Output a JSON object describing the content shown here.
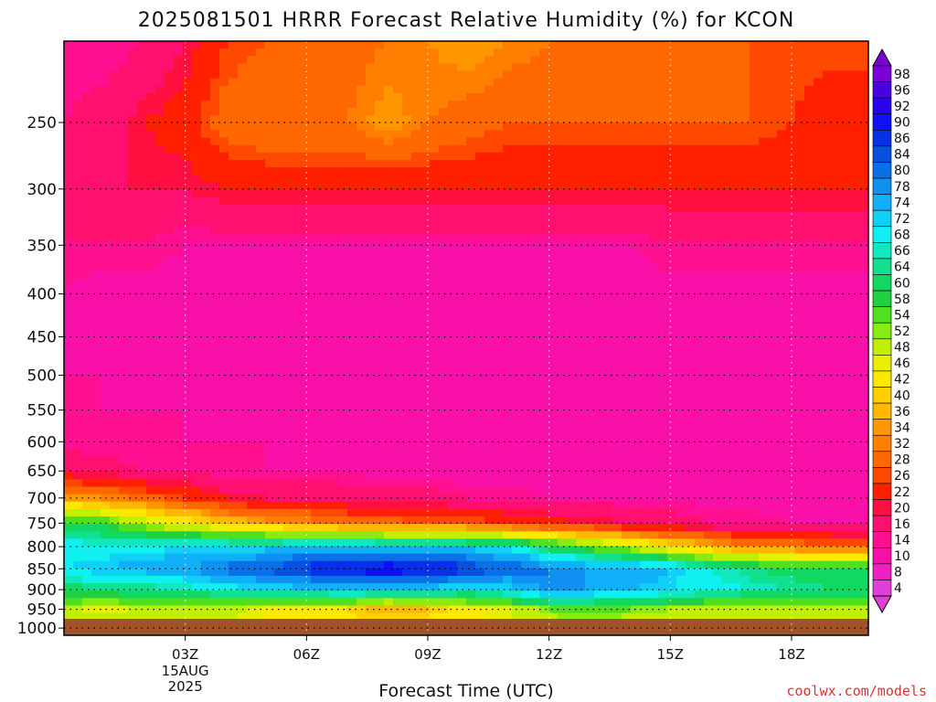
{
  "chart_data": {
    "type": "heatmap",
    "title": "2025081501 HRRR Forecast Relative Humidity (%) for KCON",
    "xlabel": "Forecast Time (UTC)",
    "credit": "coolwx.com/models",
    "y_ticks": [
      250,
      300,
      350,
      400,
      450,
      500,
      550,
      600,
      650,
      700,
      750,
      800,
      850,
      900,
      950,
      1000
    ],
    "x_ticks": [
      {
        "hour": 3,
        "label": "03Z",
        "sub": [
          "15AUG",
          "2025"
        ]
      },
      {
        "hour": 6,
        "label": "06Z"
      },
      {
        "hour": 9,
        "label": "09Z"
      },
      {
        "hour": 12,
        "label": "12Z"
      },
      {
        "hour": 15,
        "label": "15Z"
      },
      {
        "hour": 18,
        "label": "18Z"
      }
    ],
    "xlim": [
      0,
      19.9
    ],
    "ylim": [
      1020,
      200
    ],
    "log_pressure_axis": true,
    "grid": true,
    "colorbar": {
      "labels": [
        98,
        96,
        92,
        90,
        86,
        84,
        80,
        78,
        74,
        72,
        68,
        66,
        64,
        60,
        58,
        54,
        52,
        48,
        46,
        42,
        40,
        36,
        34,
        32,
        28,
        26,
        22,
        20,
        16,
        14,
        10,
        8,
        4
      ],
      "colors": [
        "#7a00d8",
        "#4a00e0",
        "#2a00f0",
        "#1010f8",
        "#0830e8",
        "#0a50e0",
        "#0a70e8",
        "#1090f0",
        "#10b0f8",
        "#10d0f8",
        "#10f0f0",
        "#10e8c0",
        "#10e090",
        "#10d860",
        "#20d040",
        "#50e020",
        "#88ec10",
        "#c0f000",
        "#e8f000",
        "#ffe800",
        "#ffd000",
        "#ffb800",
        "#ff9800",
        "#ff8000",
        "#ff6800",
        "#ff4800",
        "#ff2000",
        "#ff1040",
        "#ff1070",
        "#ff1090",
        "#f810a8",
        "#f020c0",
        "#e040d8"
      ]
    },
    "rh_profiles": [
      {
        "hour": 0,
        "p": [
          200,
          250,
          300,
          350,
          400,
          450,
          500,
          550,
          600,
          650,
          700,
          750,
          800,
          850,
          900,
          950,
          1000
        ],
        "rh": [
          14,
          16,
          20,
          16,
          14,
          12,
          14,
          16,
          14,
          20,
          36,
          60,
          70,
          72,
          62,
          50,
          54
        ]
      },
      {
        "hour": 1,
        "p": [
          200,
          250,
          300,
          350,
          400,
          450,
          500,
          550,
          600,
          650,
          700,
          750,
          800,
          850,
          900,
          950,
          1000
        ],
        "rh": [
          14,
          18,
          20,
          16,
          12,
          12,
          14,
          14,
          14,
          18,
          34,
          58,
          70,
          74,
          64,
          46,
          52
        ]
      },
      {
        "hour": 2,
        "p": [
          200,
          250,
          300,
          350,
          400,
          450,
          500,
          550,
          600,
          650,
          700,
          750,
          800,
          850,
          900,
          950,
          1000
        ],
        "rh": [
          16,
          22,
          20,
          16,
          12,
          12,
          12,
          14,
          14,
          16,
          30,
          50,
          70,
          76,
          64,
          50,
          50
        ]
      },
      {
        "hour": 3,
        "p": [
          200,
          250,
          300,
          350,
          400,
          450,
          500,
          550,
          600,
          650,
          700,
          750,
          800,
          850,
          900,
          950,
          1000
        ],
        "rh": [
          20,
          24,
          20,
          14,
          12,
          10,
          12,
          14,
          14,
          16,
          26,
          46,
          72,
          78,
          66,
          48,
          48
        ]
      },
      {
        "hour": 4,
        "p": [
          200,
          250,
          300,
          350,
          400,
          450,
          500,
          550,
          600,
          650,
          700,
          750,
          800,
          850,
          900,
          950,
          1000
        ],
        "rh": [
          26,
          30,
          22,
          14,
          12,
          10,
          12,
          12,
          14,
          14,
          22,
          40,
          72,
          82,
          70,
          50,
          48
        ]
      },
      {
        "hour": 5,
        "p": [
          200,
          250,
          300,
          350,
          400,
          450,
          500,
          550,
          600,
          650,
          700,
          750,
          800,
          850,
          900,
          950,
          1000
        ],
        "rh": [
          28,
          32,
          22,
          14,
          12,
          10,
          12,
          12,
          14,
          14,
          20,
          36,
          72,
          86,
          72,
          46,
          46
        ]
      },
      {
        "hour": 6,
        "p": [
          200,
          250,
          300,
          350,
          400,
          450,
          500,
          550,
          600,
          650,
          700,
          750,
          800,
          850,
          900,
          950,
          1000
        ],
        "rh": [
          30,
          32,
          22,
          14,
          12,
          10,
          12,
          12,
          12,
          14,
          20,
          34,
          74,
          88,
          72,
          44,
          46
        ]
      },
      {
        "hour": 7,
        "p": [
          200,
          250,
          300,
          350,
          400,
          450,
          500,
          550,
          600,
          650,
          700,
          750,
          800,
          850,
          900,
          950,
          1000
        ],
        "rh": [
          30,
          32,
          22,
          14,
          12,
          10,
          12,
          12,
          12,
          14,
          18,
          32,
          74,
          92,
          74,
          42,
          44
        ]
      },
      {
        "hour": 8,
        "p": [
          200,
          250,
          300,
          350,
          400,
          450,
          500,
          550,
          600,
          650,
          700,
          750,
          800,
          850,
          900,
          950,
          1000
        ],
        "rh": [
          32,
          36,
          22,
          14,
          12,
          10,
          12,
          12,
          12,
          12,
          18,
          30,
          74,
          94,
          74,
          38,
          44
        ]
      },
      {
        "hour": 9,
        "p": [
          200,
          250,
          300,
          350,
          400,
          450,
          500,
          550,
          600,
          650,
          700,
          750,
          800,
          850,
          900,
          950,
          1000
        ],
        "rh": [
          34,
          32,
          22,
          14,
          14,
          10,
          12,
          12,
          12,
          12,
          18,
          28,
          74,
          92,
          72,
          40,
          44
        ]
      },
      {
        "hour": 10,
        "p": [
          200,
          250,
          300,
          350,
          400,
          450,
          500,
          550,
          600,
          650,
          700,
          750,
          800,
          850,
          900,
          950,
          1000
        ],
        "rh": [
          36,
          30,
          22,
          14,
          12,
          10,
          12,
          12,
          12,
          12,
          16,
          28,
          72,
          88,
          70,
          44,
          46
        ]
      },
      {
        "hour": 11,
        "p": [
          200,
          250,
          300,
          350,
          400,
          450,
          500,
          550,
          600,
          650,
          700,
          750,
          800,
          850,
          900,
          950,
          1000
        ],
        "rh": [
          34,
          28,
          22,
          14,
          12,
          10,
          12,
          12,
          12,
          12,
          16,
          26,
          70,
          84,
          72,
          48,
          46
        ]
      },
      {
        "hour": 12,
        "p": [
          200,
          250,
          300,
          350,
          400,
          450,
          500,
          550,
          600,
          650,
          700,
          750,
          800,
          850,
          900,
          950,
          1000
        ],
        "rh": [
          32,
          28,
          22,
          14,
          12,
          10,
          12,
          12,
          12,
          12,
          14,
          24,
          62,
          80,
          80,
          54,
          48
        ]
      },
      {
        "hour": 13,
        "p": [
          200,
          250,
          300,
          350,
          400,
          450,
          500,
          550,
          600,
          650,
          700,
          750,
          800,
          850,
          900,
          950,
          1000
        ],
        "rh": [
          30,
          28,
          22,
          14,
          12,
          10,
          12,
          12,
          12,
          12,
          14,
          22,
          56,
          78,
          78,
          56,
          48
        ]
      },
      {
        "hour": 14,
        "p": [
          200,
          250,
          300,
          350,
          400,
          450,
          500,
          550,
          600,
          650,
          700,
          750,
          800,
          850,
          900,
          950,
          1000
        ],
        "rh": [
          30,
          28,
          22,
          14,
          12,
          10,
          12,
          12,
          12,
          12,
          14,
          20,
          50,
          78,
          74,
          54,
          48
        ]
      },
      {
        "hour": 15,
        "p": [
          200,
          250,
          300,
          350,
          400,
          450,
          500,
          550,
          600,
          650,
          700,
          750,
          800,
          850,
          900,
          950,
          1000
        ],
        "rh": [
          30,
          28,
          22,
          16,
          12,
          10,
          12,
          12,
          12,
          12,
          14,
          18,
          44,
          74,
          72,
          52,
          46
        ]
      },
      {
        "hour": 16,
        "p": [
          200,
          250,
          300,
          350,
          400,
          450,
          500,
          550,
          600,
          650,
          700,
          750,
          800,
          850,
          900,
          950,
          1000
        ],
        "rh": [
          28,
          28,
          22,
          16,
          12,
          10,
          12,
          12,
          12,
          12,
          12,
          16,
          38,
          68,
          70,
          50,
          46
        ]
      },
      {
        "hour": 17,
        "p": [
          200,
          250,
          300,
          350,
          400,
          450,
          500,
          550,
          600,
          650,
          700,
          750,
          800,
          850,
          900,
          950,
          1000
        ],
        "rh": [
          28,
          28,
          22,
          16,
          12,
          10,
          12,
          12,
          12,
          12,
          12,
          16,
          34,
          64,
          68,
          50,
          46
        ]
      },
      {
        "hour": 18,
        "p": [
          200,
          250,
          300,
          350,
          400,
          450,
          500,
          550,
          600,
          650,
          700,
          750,
          800,
          850,
          900,
          950,
          1000
        ],
        "rh": [
          28,
          26,
          22,
          16,
          12,
          10,
          12,
          12,
          12,
          12,
          12,
          14,
          32,
          62,
          66,
          50,
          46
        ]
      },
      {
        "hour": 19,
        "p": [
          200,
          250,
          300,
          350,
          400,
          450,
          500,
          550,
          600,
          650,
          700,
          750,
          800,
          850,
          900,
          950,
          1000
        ],
        "rh": [
          28,
          22,
          22,
          16,
          12,
          10,
          12,
          12,
          12,
          12,
          12,
          14,
          30,
          60,
          64,
          50,
          46
        ]
      }
    ],
    "surface_fill_color": "#a0522d"
  }
}
